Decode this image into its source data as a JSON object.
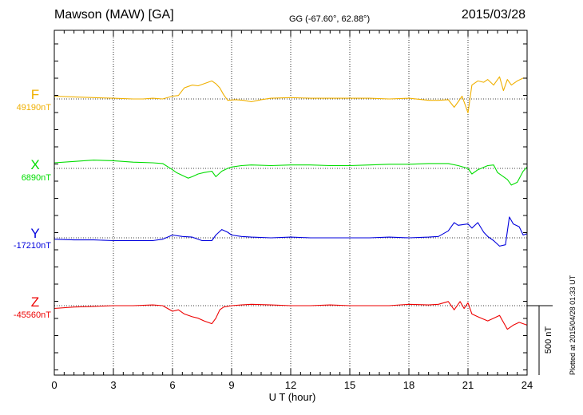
{
  "header": {
    "station": "Mawson (MAW)  [GA]",
    "coords": "GG (-67.60°,  62.88°)",
    "date": "2015/03/28"
  },
  "footer": {
    "plotted": "Plotted at 2015/04/28 01:33 UT"
  },
  "colors": {
    "F": "#f0b000",
    "X": "#00dd00",
    "Y": "#0000dd",
    "Z": "#ee0000",
    "axis": "#000000",
    "grid": "#000000"
  },
  "chart_data": {
    "type": "line",
    "xlabel": "U T (hour)",
    "xlim": [
      0,
      24
    ],
    "xticks": [
      "0",
      "3",
      "6",
      "9",
      "12",
      "15",
      "18",
      "21",
      "24"
    ],
    "scale_bar_label": "500 nT",
    "scale_bar_nT": 500,
    "series": [
      {
        "name": "F",
        "baseline_label": "49190nT",
        "x": [
          0,
          1,
          2,
          3,
          4,
          4.5,
          5,
          5.5,
          6,
          6.3,
          6.6,
          6.8,
          7,
          7.3,
          7.6,
          7.8,
          8,
          8.2,
          8.4,
          8.6,
          8.8,
          9.2,
          9.6,
          10,
          10.5,
          11,
          12,
          13,
          14,
          15,
          16,
          17,
          18,
          19,
          19.5,
          20,
          20.3,
          20.5,
          20.7,
          21,
          21.2,
          21.5,
          21.8,
          22,
          22.3,
          22.6,
          22.8,
          23,
          23.2,
          23.5,
          23.8,
          24
        ],
        "y": [
          20,
          15,
          10,
          5,
          0,
          0,
          5,
          0,
          20,
          25,
          80,
          90,
          100,
          95,
          110,
          120,
          130,
          110,
          80,
          30,
          -10,
          -5,
          -10,
          -20,
          -5,
          5,
          10,
          5,
          5,
          5,
          5,
          0,
          5,
          -10,
          -10,
          -5,
          -60,
          -20,
          20,
          -100,
          100,
          130,
          120,
          140,
          100,
          160,
          60,
          140,
          100,
          130,
          150,
          150
        ]
      },
      {
        "name": "X",
        "baseline_label": "6890nT",
        "x": [
          0,
          1,
          2,
          3,
          4,
          5,
          5.5,
          6,
          6.2,
          6.5,
          6.8,
          7,
          7.3,
          7.6,
          8,
          8.2,
          8.5,
          8.8,
          9,
          9.5,
          10,
          11,
          12,
          13,
          14,
          15,
          16,
          17,
          18,
          19,
          20,
          20.5,
          21,
          21.2,
          21.5,
          22,
          22.3,
          22.5,
          22.8,
          23,
          23.2,
          23.5,
          23.8,
          24
        ],
        "y": [
          40,
          50,
          60,
          55,
          45,
          40,
          35,
          -10,
          -30,
          -50,
          -70,
          -60,
          -40,
          -30,
          -20,
          -60,
          -20,
          0,
          10,
          20,
          25,
          20,
          25,
          25,
          20,
          20,
          25,
          30,
          30,
          35,
          35,
          20,
          0,
          -40,
          -10,
          20,
          25,
          -30,
          -60,
          -80,
          -120,
          -100,
          -20,
          10
        ]
      },
      {
        "name": "Y",
        "baseline_label": "-17210nT",
        "x": [
          0,
          1,
          2,
          3,
          4,
          5,
          5.5,
          6,
          6.5,
          7,
          7.5,
          8,
          8.2,
          8.5,
          8.8,
          9,
          9.5,
          10,
          11,
          12,
          13,
          14,
          15,
          16,
          17,
          18,
          19,
          19.5,
          20,
          20.3,
          20.5,
          21,
          21.2,
          21.5,
          21.8,
          22,
          22.3,
          22.6,
          22.9,
          23.1,
          23.3,
          23.6,
          23.8,
          24
        ],
        "y": [
          -10,
          -15,
          -15,
          -20,
          -20,
          -20,
          -10,
          20,
          10,
          5,
          -20,
          -20,
          20,
          60,
          40,
          20,
          10,
          5,
          0,
          5,
          0,
          0,
          0,
          0,
          5,
          0,
          5,
          10,
          50,
          110,
          90,
          100,
          70,
          110,
          40,
          10,
          -20,
          -60,
          -50,
          150,
          100,
          80,
          20,
          30
        ]
      },
      {
        "name": "Z",
        "baseline_label": "-45560nT",
        "x": [
          0,
          1,
          2,
          3,
          4,
          5,
          5.5,
          6,
          6.3,
          6.6,
          7,
          7.3,
          7.6,
          8,
          8.2,
          8.4,
          8.6,
          9,
          9.5,
          10,
          11,
          12,
          13,
          14,
          15,
          16,
          17,
          18,
          19,
          19.5,
          20,
          20.3,
          20.6,
          20.8,
          21,
          21.2,
          21.5,
          22,
          22.3,
          22.6,
          22.8,
          23,
          23.3,
          23.6,
          24
        ],
        "y": [
          -20,
          -10,
          -5,
          0,
          0,
          5,
          0,
          -40,
          -30,
          -60,
          -80,
          -90,
          -110,
          -130,
          -90,
          -30,
          -10,
          0,
          5,
          10,
          5,
          0,
          0,
          5,
          0,
          0,
          0,
          10,
          5,
          10,
          30,
          -30,
          30,
          -20,
          20,
          -60,
          -80,
          -110,
          -90,
          -70,
          -120,
          -170,
          -140,
          -120,
          -140
        ]
      }
    ]
  }
}
